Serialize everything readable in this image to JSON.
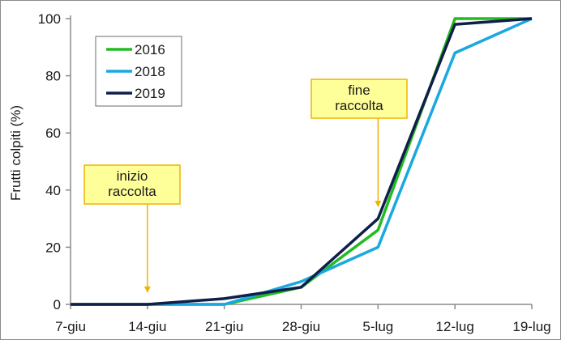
{
  "chart_data": {
    "type": "line",
    "ylabel": "Frutti colpiti (%)",
    "xlabel": "",
    "categories": [
      "7-giu",
      "14-giu",
      "21-giu",
      "28-giu",
      "5-lug",
      "12-lug",
      "19-lug"
    ],
    "ylim": [
      0,
      100
    ],
    "yticks": [
      0,
      20,
      40,
      60,
      80,
      100
    ],
    "grid": false,
    "legend_position": "top-left",
    "series": [
      {
        "name": "2016",
        "color": "#22bb22",
        "values": [
          0,
          0,
          0,
          6,
          26,
          100,
          100
        ]
      },
      {
        "name": "2018",
        "color": "#19a8e0",
        "values": [
          0,
          0,
          0,
          8,
          20,
          88,
          100
        ]
      },
      {
        "name": "2019",
        "color": "#0f1e4a",
        "values": [
          0,
          0,
          2,
          6,
          30,
          98,
          100
        ]
      }
    ],
    "annotations": [
      {
        "lines": [
          "inizio",
          "raccolta"
        ],
        "x_category": "14-giu",
        "arrow_to_y": 4
      },
      {
        "lines": [
          "fine",
          "raccolta"
        ],
        "x_category": "5-lug",
        "arrow_to_y": 34
      }
    ],
    "annotation_box_color": "#ffff99",
    "annotation_border_color": "#f0b400",
    "annotation_arrow_color": "#f0b400"
  }
}
